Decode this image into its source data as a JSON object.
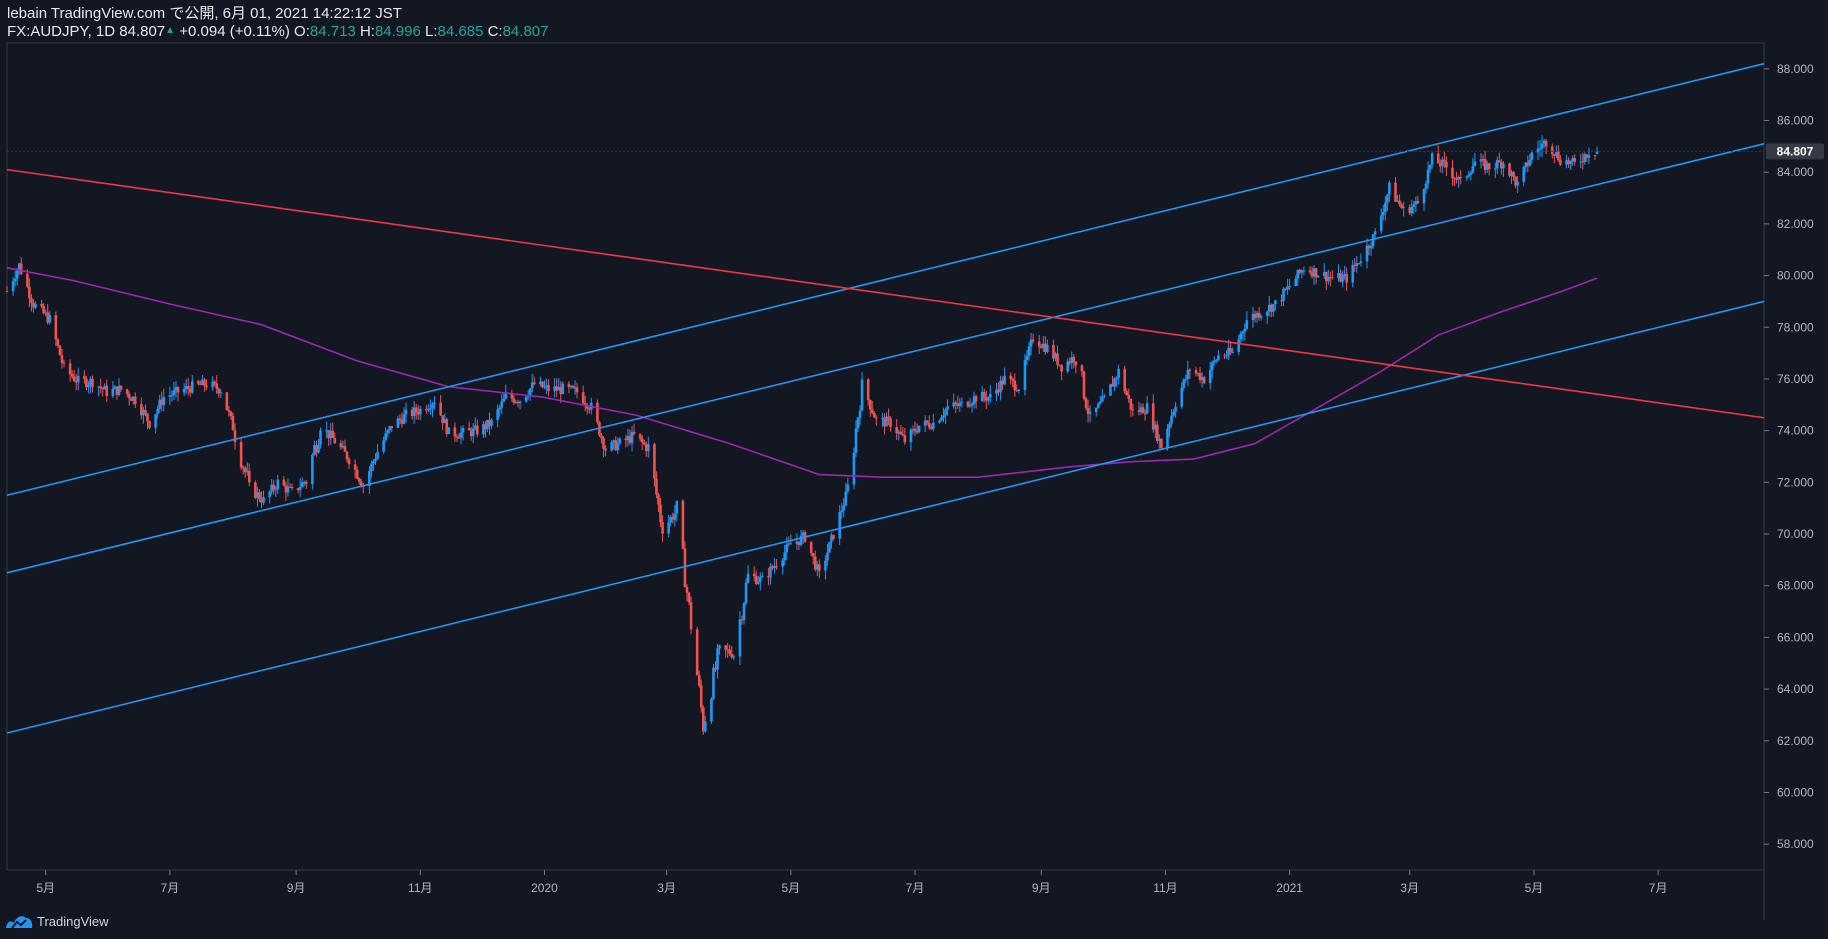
{
  "header": {
    "publisher_line": "lebain TradingView.com で公開, 6月 01, 2021 14:22:12 JST",
    "symbol": "FX:AUDJPY, 1D",
    "last": "84.807",
    "change": "+0.094 (+0.11%)",
    "o_label": "O:",
    "o_value": "84.713",
    "h_label": "H:",
    "h_value": "84.996",
    "l_label": "L:",
    "l_value": "84.685",
    "c_label": "C:",
    "c_value": "84.807"
  },
  "footer": {
    "brand": "TradingView",
    "logo_icon": "tradingview-logo-icon"
  },
  "colors": {
    "background": "#131722",
    "candle_up": "#2196f3",
    "candle_down": "#ef5350",
    "channel": "#2196f3",
    "trendline": "#f23645",
    "moving_average": "#9c27b0",
    "grid": "#2a2e39",
    "price_label_bg": "#363a45"
  },
  "chart_data": {
    "type": "candlestick",
    "symbol": "FX:AUDJPY",
    "interval": "1D",
    "grid": false,
    "last_price": 84.807,
    "last_price_label": "84.807",
    "ylim": [
      57,
      89
    ],
    "y_ticks": [
      "88.000",
      "86.000",
      "84.000",
      "82.000",
      "80.000",
      "78.000",
      "76.000",
      "74.000",
      "72.000",
      "70.000",
      "68.000",
      "66.000",
      "64.000",
      "62.000",
      "60.000",
      "58.000"
    ],
    "y_tick_values": [
      88,
      86,
      84,
      82,
      80,
      78,
      76,
      74,
      72,
      70,
      68,
      66,
      64,
      62,
      60,
      58
    ],
    "xlim": [
      "2019-04-12",
      "2021-08-22"
    ],
    "x_ticks": [
      {
        "label": "5月",
        "date": "2019-05-01"
      },
      {
        "label": "7月",
        "date": "2019-07-01"
      },
      {
        "label": "9月",
        "date": "2019-09-01"
      },
      {
        "label": "11月",
        "date": "2019-11-01"
      },
      {
        "label": "2020",
        "date": "2020-01-01"
      },
      {
        "label": "3月",
        "date": "2020-03-01"
      },
      {
        "label": "5月",
        "date": "2020-05-01"
      },
      {
        "label": "7月",
        "date": "2020-07-01"
      },
      {
        "label": "9月",
        "date": "2020-09-01"
      },
      {
        "label": "11月",
        "date": "2020-11-01"
      },
      {
        "label": "2021",
        "date": "2021-01-01"
      },
      {
        "label": "3月",
        "date": "2021-03-01"
      },
      {
        "label": "5月",
        "date": "2021-05-01"
      },
      {
        "label": "7月",
        "date": "2021-07-01"
      }
    ],
    "close_path": [
      [
        "2019-04-12",
        79.4
      ],
      [
        "2019-04-18",
        80.4
      ],
      [
        "2019-04-25",
        78.9
      ],
      [
        "2019-05-03",
        78.3
      ],
      [
        "2019-05-10",
        76.4
      ],
      [
        "2019-05-17",
        75.9
      ],
      [
        "2019-05-24",
        75.9
      ],
      [
        "2019-05-31",
        75.5
      ],
      [
        "2019-06-07",
        75.6
      ],
      [
        "2019-06-14",
        75.2
      ],
      [
        "2019-06-21",
        74.3
      ],
      [
        "2019-06-28",
        75.3
      ],
      [
        "2019-07-05",
        75.5
      ],
      [
        "2019-07-12",
        75.7
      ],
      [
        "2019-07-19",
        75.8
      ],
      [
        "2019-07-26",
        75.6
      ],
      [
        "2019-08-02",
        73.9
      ],
      [
        "2019-08-09",
        71.8
      ],
      [
        "2019-08-16",
        71.3
      ],
      [
        "2019-08-23",
        72.0
      ],
      [
        "2019-08-30",
        71.6
      ],
      [
        "2019-09-06",
        72.1
      ],
      [
        "2019-09-13",
        74.2
      ],
      [
        "2019-09-20",
        73.6
      ],
      [
        "2019-09-27",
        72.9
      ],
      [
        "2019-10-04",
        71.9
      ],
      [
        "2019-10-11",
        73.2
      ],
      [
        "2019-10-18",
        74.2
      ],
      [
        "2019-10-25",
        74.6
      ],
      [
        "2019-11-01",
        74.8
      ],
      [
        "2019-11-08",
        75.2
      ],
      [
        "2019-11-15",
        73.9
      ],
      [
        "2019-11-22",
        73.9
      ],
      [
        "2019-11-29",
        74.0
      ],
      [
        "2019-12-06",
        74.3
      ],
      [
        "2019-12-13",
        75.3
      ],
      [
        "2019-12-20",
        75.2
      ],
      [
        "2019-12-27",
        75.8
      ],
      [
        "2020-01-03",
        75.6
      ],
      [
        "2020-01-10",
        75.6
      ],
      [
        "2020-01-17",
        75.5
      ],
      [
        "2020-01-24",
        74.9
      ],
      [
        "2020-01-31",
        73.3
      ],
      [
        "2020-02-07",
        73.5
      ],
      [
        "2020-02-14",
        73.8
      ],
      [
        "2020-02-21",
        73.3
      ],
      [
        "2020-02-28",
        70.2
      ],
      [
        "2020-03-06",
        70.9
      ],
      [
        "2020-03-13",
        66.5
      ],
      [
        "2020-03-19",
        62.6
      ],
      [
        "2020-03-27",
        65.5
      ],
      [
        "2020-04-03",
        65.4
      ],
      [
        "2020-04-10",
        68.4
      ],
      [
        "2020-04-17",
        68.2
      ],
      [
        "2020-04-24",
        68.9
      ],
      [
        "2020-05-01",
        69.6
      ],
      [
        "2020-05-08",
        69.9
      ],
      [
        "2020-05-15",
        68.4
      ],
      [
        "2020-05-22",
        70.0
      ],
      [
        "2020-05-29",
        71.7
      ],
      [
        "2020-06-05",
        75.8
      ],
      [
        "2020-06-12",
        74.4
      ],
      [
        "2020-06-19",
        74.3
      ],
      [
        "2020-06-26",
        73.6
      ],
      [
        "2020-07-03",
        74.2
      ],
      [
        "2020-07-10",
        74.3
      ],
      [
        "2020-07-17",
        74.9
      ],
      [
        "2020-07-24",
        75.0
      ],
      [
        "2020-07-31",
        75.3
      ],
      [
        "2020-08-07",
        75.3
      ],
      [
        "2020-08-14",
        76.0
      ],
      [
        "2020-08-21",
        75.7
      ],
      [
        "2020-08-28",
        77.6
      ],
      [
        "2020-09-04",
        77.2
      ],
      [
        "2020-09-11",
        76.5
      ],
      [
        "2020-09-18",
        76.9
      ],
      [
        "2020-09-25",
        74.5
      ],
      [
        "2020-10-02",
        75.2
      ],
      [
        "2020-10-09",
        76.3
      ],
      [
        "2020-10-16",
        74.7
      ],
      [
        "2020-10-23",
        74.9
      ],
      [
        "2020-10-30",
        73.4
      ],
      [
        "2020-11-06",
        75.1
      ],
      [
        "2020-11-13",
        76.4
      ],
      [
        "2020-11-20",
        76.0
      ],
      [
        "2020-11-27",
        76.9
      ],
      [
        "2020-12-04",
        77.0
      ],
      [
        "2020-12-11",
        78.3
      ],
      [
        "2020-12-18",
        78.6
      ],
      [
        "2020-12-25",
        78.9
      ],
      [
        "2021-01-01",
        79.6
      ],
      [
        "2021-01-08",
        80.3
      ],
      [
        "2021-01-15",
        80.1
      ],
      [
        "2021-01-22",
        79.9
      ],
      [
        "2021-01-29",
        79.9
      ],
      [
        "2021-02-05",
        80.7
      ],
      [
        "2021-02-12",
        81.6
      ],
      [
        "2021-02-19",
        83.4
      ],
      [
        "2021-02-26",
        82.5
      ],
      [
        "2021-03-05",
        82.8
      ],
      [
        "2021-03-12",
        84.5
      ],
      [
        "2021-03-19",
        84.2
      ],
      [
        "2021-03-26",
        83.6
      ],
      [
        "2021-04-02",
        84.4
      ],
      [
        "2021-04-09",
        84.2
      ],
      [
        "2021-04-16",
        84.4
      ],
      [
        "2021-04-23",
        83.5
      ],
      [
        "2021-04-30",
        84.7
      ],
      [
        "2021-05-07",
        85.2
      ],
      [
        "2021-05-14",
        84.5
      ],
      [
        "2021-05-21",
        84.3
      ],
      [
        "2021-05-28",
        84.8
      ],
      [
        "2021-06-01",
        84.807
      ]
    ],
    "moving_average": [
      [
        "2019-04-12",
        80.3
      ],
      [
        "2019-05-15",
        79.8
      ],
      [
        "2019-07-01",
        78.9
      ],
      [
        "2019-08-15",
        78.1
      ],
      [
        "2019-10-01",
        76.7
      ],
      [
        "2019-11-15",
        75.7
      ],
      [
        "2019-12-31",
        75.3
      ],
      [
        "2020-02-15",
        74.6
      ],
      [
        "2020-04-01",
        73.5
      ],
      [
        "2020-05-15",
        72.3
      ],
      [
        "2020-06-15",
        72.2
      ],
      [
        "2020-08-01",
        72.2
      ],
      [
        "2020-09-15",
        72.6
      ],
      [
        "2020-10-15",
        72.8
      ],
      [
        "2020-11-15",
        72.9
      ],
      [
        "2020-12-15",
        73.5
      ],
      [
        "2021-01-15",
        74.9
      ],
      [
        "2021-02-15",
        76.3
      ],
      [
        "2021-03-15",
        77.7
      ],
      [
        "2021-04-15",
        78.6
      ],
      [
        "2021-05-15",
        79.4
      ],
      [
        "2021-06-01",
        79.9
      ]
    ],
    "trendlines": [
      {
        "kind": "channel-upper",
        "start": [
          "2019-04-12",
          71.5
        ],
        "end": [
          "2021-08-22",
          88.2
        ]
      },
      {
        "kind": "channel-middle",
        "start": [
          "2019-04-12",
          68.5
        ],
        "end": [
          "2021-08-22",
          85.1
        ]
      },
      {
        "kind": "channel-lower",
        "start": [
          "2019-04-12",
          62.3
        ],
        "end": [
          "2021-08-22",
          79.0
        ]
      },
      {
        "kind": "resistance",
        "start": [
          "2019-04-12",
          84.1
        ],
        "end": [
          "2021-08-22",
          74.5
        ]
      }
    ]
  }
}
